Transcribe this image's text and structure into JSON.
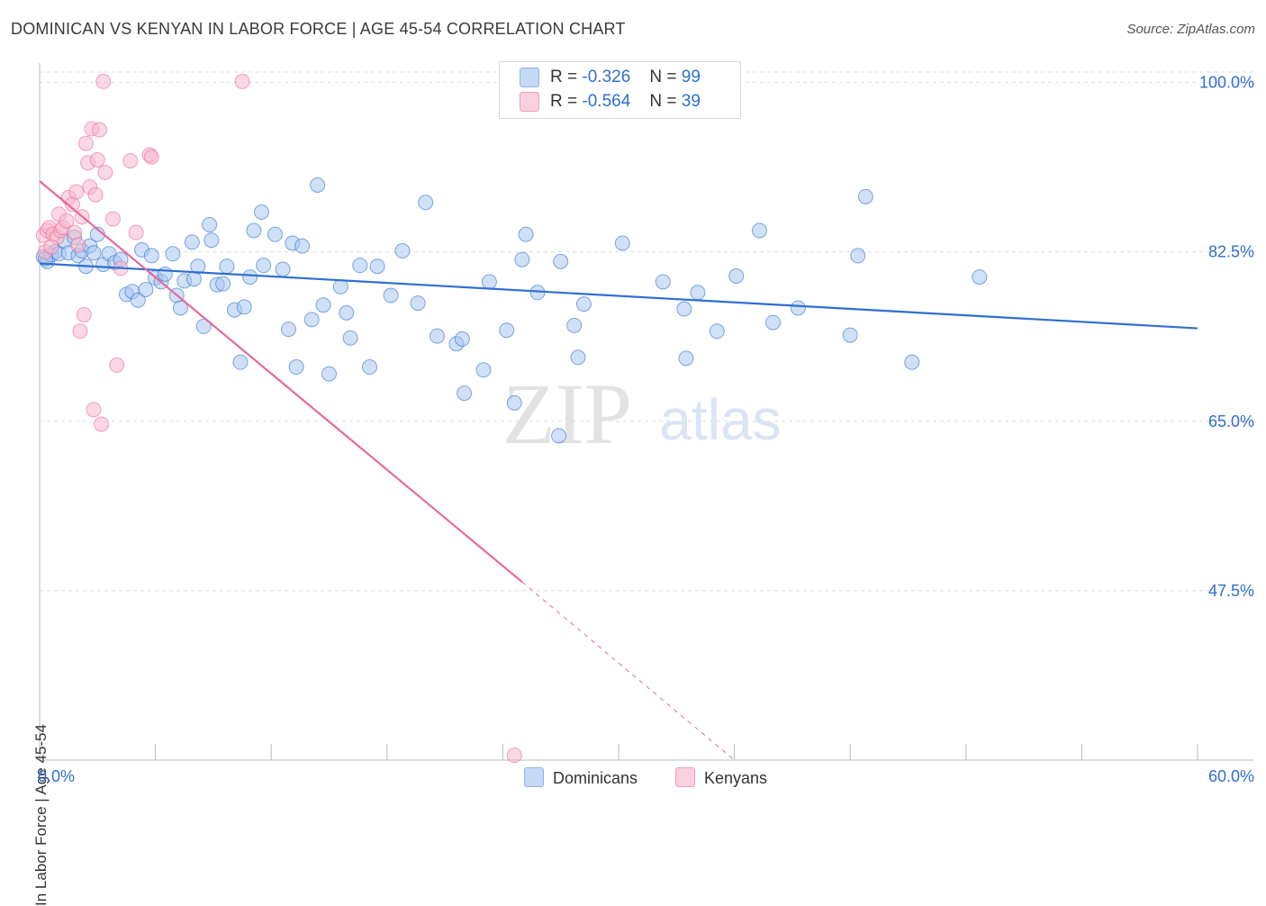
{
  "title": "DOMINICAN VS KENYAN IN LABOR FORCE | AGE 45-54 CORRELATION CHART",
  "source": "Source: ZipAtlas.com",
  "watermark": {
    "zip": "ZIP",
    "atlas": "atlas"
  },
  "legend": {
    "rows": [
      {
        "r_label": "R =",
        "r_value": "-0.326",
        "n_label": "N =",
        "n_value": "99",
        "color": "#a9c6f0"
      },
      {
        "r_label": "R =",
        "r_value": "-0.564",
        "n_label": "N =",
        "n_value": "39",
        "color": "#f7b8cb"
      }
    ]
  },
  "bottom_legend": [
    {
      "label": "Dominicans",
      "color": "#a9c6f0"
    },
    {
      "label": "Kenyans",
      "color": "#f7b8cb"
    }
  ],
  "chart_data": {
    "type": "scatter",
    "title": "DOMINICAN VS KENYAN IN LABOR FORCE | AGE 45-54 CORRELATION CHART",
    "xlabel": "",
    "ylabel": "In Labor Force | Age 45-54",
    "xlim": [
      0,
      60
    ],
    "ylim": [
      30,
      102
    ],
    "x_tick_labels": [
      "0.0%",
      "60.0%"
    ],
    "y_ticks": [
      47.5,
      65.0,
      82.5,
      100.0
    ],
    "y_tick_labels": [
      "47.5%",
      "65.0%",
      "82.5%",
      "100.0%"
    ],
    "grid": true,
    "legend_position": "top-center",
    "series": [
      {
        "name": "Dominicans",
        "color": "#2f6fd0",
        "fill": "#a9c6f0",
        "trend": {
          "x": [
            0,
            60
          ],
          "y": [
            81.3,
            74.6
          ],
          "style": "solid"
        },
        "points": [
          [
            0.2,
            82.0
          ],
          [
            0.4,
            81.5
          ],
          [
            0.6,
            82.2
          ],
          [
            0.8,
            82.5
          ],
          [
            1.0,
            82.3
          ],
          [
            1.3,
            83.6
          ],
          [
            1.5,
            82.4
          ],
          [
            1.8,
            84.0
          ],
          [
            2.0,
            82.1
          ],
          [
            2.2,
            82.6
          ],
          [
            2.4,
            81.0
          ],
          [
            2.6,
            83.1
          ],
          [
            2.8,
            82.4
          ],
          [
            3.0,
            84.3
          ],
          [
            3.3,
            81.2
          ],
          [
            3.6,
            82.3
          ],
          [
            3.9,
            81.4
          ],
          [
            4.2,
            81.7
          ],
          [
            4.5,
            78.1
          ],
          [
            4.8,
            78.4
          ],
          [
            5.1,
            77.5
          ],
          [
            5.3,
            82.7
          ],
          [
            5.5,
            78.6
          ],
          [
            5.8,
            82.1
          ],
          [
            6.0,
            79.8
          ],
          [
            6.3,
            79.4
          ],
          [
            6.5,
            80.2
          ],
          [
            6.9,
            82.3
          ],
          [
            7.1,
            78.0
          ],
          [
            7.3,
            76.7
          ],
          [
            7.5,
            79.5
          ],
          [
            7.9,
            83.5
          ],
          [
            8.0,
            79.7
          ],
          [
            8.2,
            81.0
          ],
          [
            8.5,
            74.8
          ],
          [
            8.8,
            85.3
          ],
          [
            8.9,
            83.7
          ],
          [
            9.2,
            79.1
          ],
          [
            9.5,
            79.2
          ],
          [
            9.7,
            81.0
          ],
          [
            10.1,
            76.5
          ],
          [
            10.4,
            71.1
          ],
          [
            10.6,
            76.8
          ],
          [
            10.9,
            79.9
          ],
          [
            11.1,
            84.7
          ],
          [
            11.5,
            86.6
          ],
          [
            11.6,
            81.1
          ],
          [
            12.2,
            84.3
          ],
          [
            12.6,
            80.7
          ],
          [
            12.9,
            74.5
          ],
          [
            13.1,
            83.4
          ],
          [
            13.3,
            70.6
          ],
          [
            13.6,
            83.1
          ],
          [
            14.1,
            75.5
          ],
          [
            14.4,
            89.4
          ],
          [
            14.7,
            77.0
          ],
          [
            15.0,
            69.9
          ],
          [
            15.6,
            78.9
          ],
          [
            15.9,
            76.2
          ],
          [
            16.1,
            73.6
          ],
          [
            16.6,
            81.1
          ],
          [
            17.1,
            70.6
          ],
          [
            17.5,
            81.0
          ],
          [
            18.2,
            78.0
          ],
          [
            18.8,
            82.6
          ],
          [
            19.6,
            77.2
          ],
          [
            20.0,
            87.6
          ],
          [
            20.6,
            73.8
          ],
          [
            21.6,
            73.0
          ],
          [
            21.9,
            73.5
          ],
          [
            22.0,
            67.9
          ],
          [
            23.0,
            70.3
          ],
          [
            23.3,
            79.4
          ],
          [
            24.2,
            74.4
          ],
          [
            24.6,
            66.9
          ],
          [
            25.0,
            81.7
          ],
          [
            25.2,
            84.3
          ],
          [
            25.8,
            78.3
          ],
          [
            26.9,
            63.5
          ],
          [
            27.0,
            81.5
          ],
          [
            27.7,
            74.9
          ],
          [
            27.9,
            71.6
          ],
          [
            28.2,
            77.1
          ],
          [
            30.2,
            83.4
          ],
          [
            32.3,
            79.4
          ],
          [
            33.4,
            76.6
          ],
          [
            33.5,
            71.5
          ],
          [
            34.1,
            78.3
          ],
          [
            35.1,
            74.3
          ],
          [
            36.1,
            80.0
          ],
          [
            37.3,
            84.7
          ],
          [
            38.0,
            75.2
          ],
          [
            39.3,
            76.7
          ],
          [
            42.4,
            82.1
          ],
          [
            42.0,
            73.9
          ],
          [
            42.8,
            88.2
          ],
          [
            45.2,
            71.1
          ],
          [
            48.7,
            79.9
          ],
          [
            0.3,
            81.8
          ]
        ]
      },
      {
        "name": "Kenyans",
        "color": "#e8699a",
        "fill": "#f7b8cb",
        "trend": {
          "x": [
            0,
            25
          ],
          "y": [
            89.8,
            48.4
          ],
          "dash_to": [
            36,
            30.0
          ],
          "style": "solid+dashed"
        },
        "points": [
          [
            0.2,
            84.2
          ],
          [
            0.3,
            82.5
          ],
          [
            0.4,
            84.7
          ],
          [
            0.5,
            85.0
          ],
          [
            0.7,
            84.3
          ],
          [
            0.9,
            84.0
          ],
          [
            1.0,
            86.4
          ],
          [
            1.1,
            84.7
          ],
          [
            1.2,
            85.0
          ],
          [
            1.4,
            85.7
          ],
          [
            1.5,
            88.1
          ],
          [
            1.7,
            87.4
          ],
          [
            1.8,
            84.5
          ],
          [
            1.9,
            88.7
          ],
          [
            2.0,
            83.2
          ],
          [
            2.1,
            74.3
          ],
          [
            2.2,
            86.1
          ],
          [
            2.3,
            76.0
          ],
          [
            2.4,
            93.7
          ],
          [
            2.5,
            91.7
          ],
          [
            2.6,
            89.2
          ],
          [
            2.7,
            95.2
          ],
          [
            2.8,
            66.2
          ],
          [
            2.9,
            88.4
          ],
          [
            3.0,
            92.0
          ],
          [
            3.1,
            95.1
          ],
          [
            3.2,
            64.7
          ],
          [
            3.3,
            100.1
          ],
          [
            3.4,
            90.7
          ],
          [
            3.8,
            85.9
          ],
          [
            4.0,
            70.8
          ],
          [
            4.2,
            80.8
          ],
          [
            4.7,
            91.9
          ],
          [
            5.0,
            84.5
          ],
          [
            5.7,
            92.5
          ],
          [
            5.8,
            92.3
          ],
          [
            10.5,
            100.1
          ],
          [
            24.6,
            30.5
          ],
          [
            0.6,
            83.0
          ]
        ]
      }
    ]
  }
}
